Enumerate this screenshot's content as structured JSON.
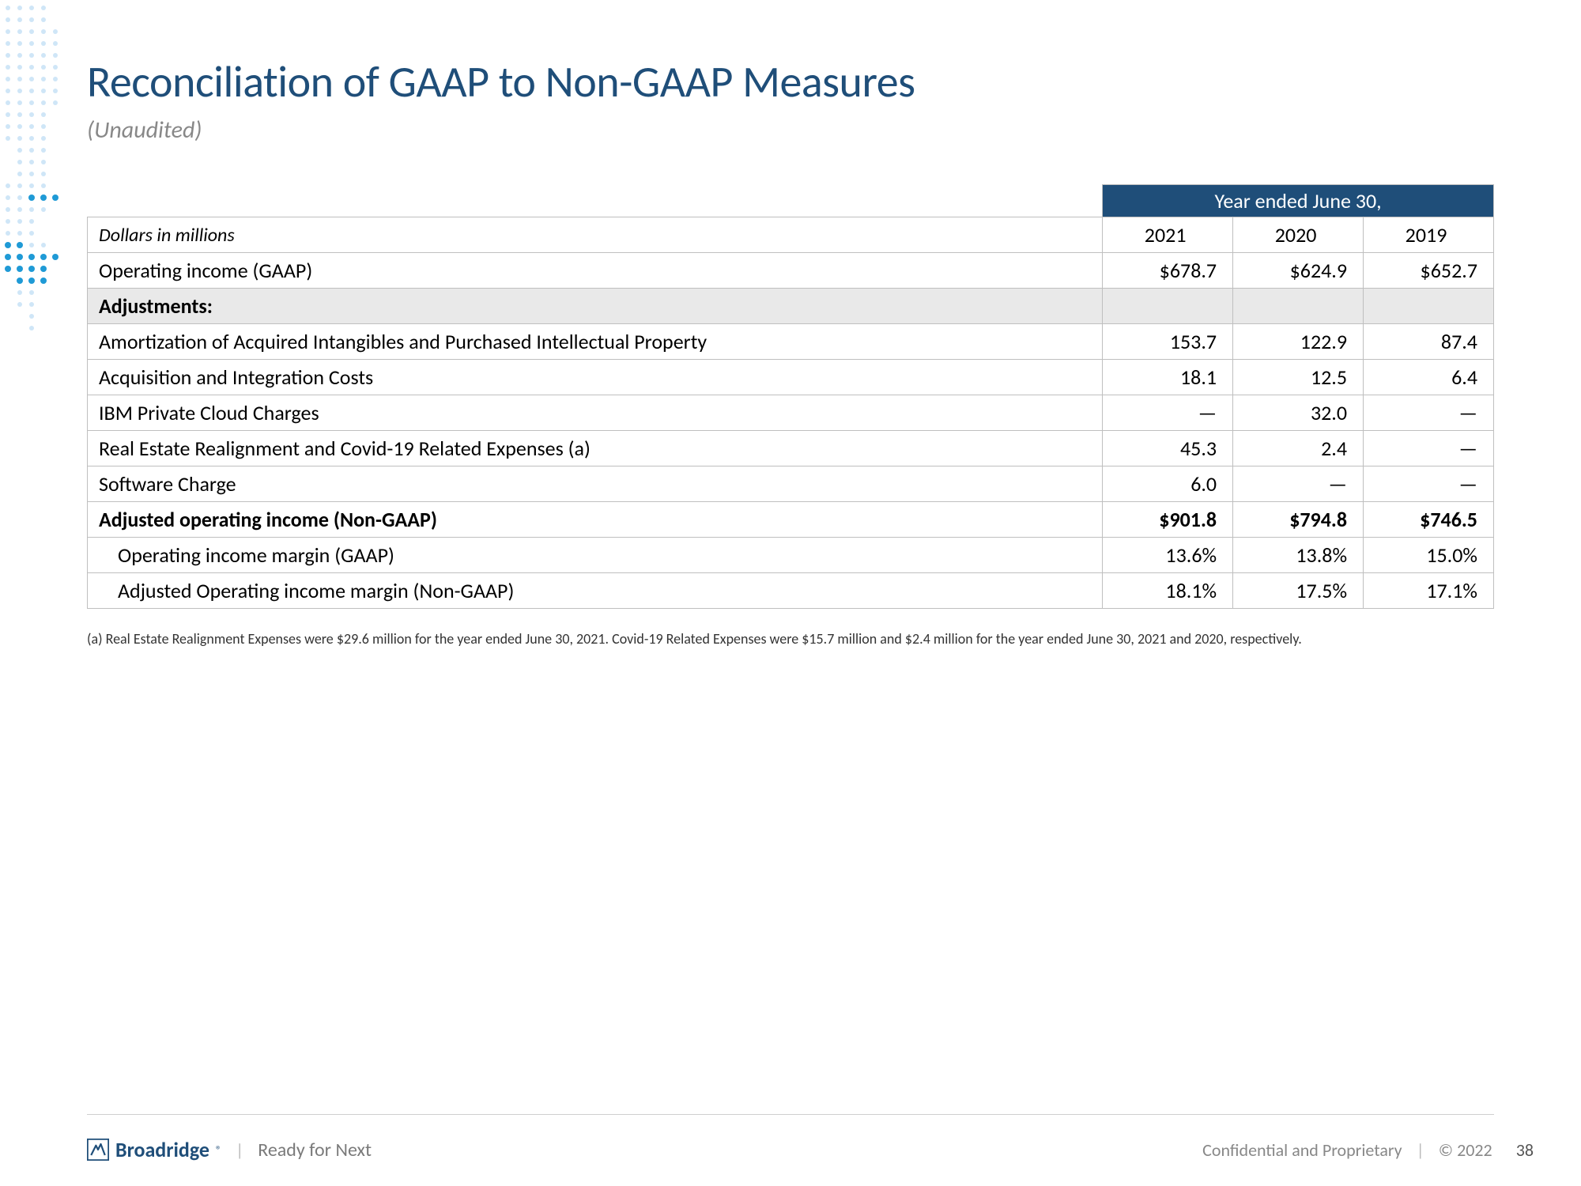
{
  "colors": {
    "title": "#1f4e79",
    "header_bg": "#1f4e79",
    "header_text": "#ffffff",
    "section_bg": "#e9e9e9",
    "border": "#bfbfbf",
    "subtitle": "#888888",
    "dot_light": "#cfe6f7",
    "dot_dark": "#1f9ad6"
  },
  "title": "Reconciliation of GAAP to Non-GAAP Measures",
  "subtitle": "(Unaudited)",
  "table": {
    "year_header": "Year ended June 30,",
    "label_header": "Dollars in millions",
    "years": [
      "2021",
      "2020",
      "2019"
    ],
    "rows": [
      {
        "label": "Operating income (GAAP)",
        "vals": [
          "$678.7",
          "$624.9",
          "$652.7"
        ],
        "bold": false
      },
      {
        "label": "Adjustments:",
        "section": true
      },
      {
        "label": "Amortization of Acquired Intangibles and Purchased Intellectual Property",
        "vals": [
          "153.7",
          "122.9",
          "87.4"
        ]
      },
      {
        "label": "Acquisition and Integration Costs",
        "vals": [
          "18.1",
          "12.5",
          "6.4"
        ]
      },
      {
        "label": "IBM Private Cloud Charges",
        "vals": [
          "—",
          "32.0",
          "—"
        ]
      },
      {
        "label": "Real Estate Realignment and Covid-19 Related Expenses (a)",
        "vals": [
          "45.3",
          "2.4",
          "—"
        ]
      },
      {
        "label": "Software Charge",
        "vals": [
          "6.0",
          "—",
          "—"
        ]
      },
      {
        "label": "Adjusted operating income (Non-GAAP)",
        "vals": [
          "$901.8",
          "$794.8",
          "$746.5"
        ],
        "bold": true
      },
      {
        "label": "Operating income margin (GAAP)",
        "vals": [
          "13.6%",
          "13.8%",
          "15.0%"
        ],
        "indent": true
      },
      {
        "label": "Adjusted Operating income margin (Non-GAAP)",
        "vals": [
          "18.1%",
          "17.5%",
          "17.1%"
        ],
        "indent": true
      }
    ]
  },
  "footnote": "(a) Real Estate Realignment Expenses were $29.6 million for the year ended June 30, 2021. Covid-19 Related Expenses were $15.7 million and $2.4 million for the year ended June 30, 2021 and 2020, respectively.",
  "footer": {
    "brand": "Broadridge",
    "tagline": "Ready for Next",
    "confidential": "Confidential and Proprietary",
    "copyright": "© 2022",
    "page": "38"
  }
}
